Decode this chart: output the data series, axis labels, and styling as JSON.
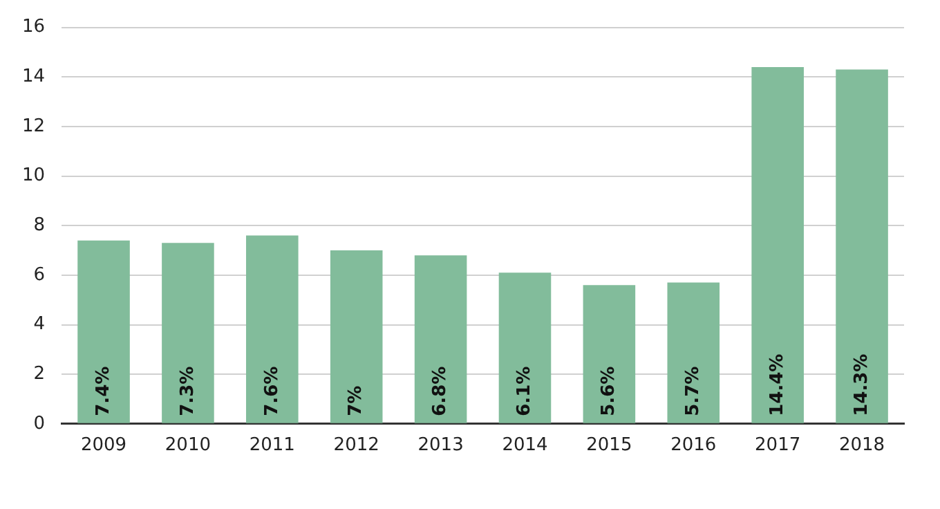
{
  "chart_data": {
    "type": "bar",
    "categories": [
      "2009",
      "2010",
      "2011",
      "2012",
      "2013",
      "2014",
      "2015",
      "2016",
      "2017",
      "2018"
    ],
    "values": [
      7.4,
      7.3,
      7.6,
      7,
      6.8,
      6.1,
      5.6,
      5.7,
      14.4,
      14.3
    ],
    "value_labels": [
      "7.4%",
      "7.3%",
      "7.6%",
      "7%",
      "6.8%",
      "6.1%",
      "5.6%",
      "5.7%",
      "14.4%",
      "14.3%"
    ],
    "color": "#82bc9b",
    "ylim": [
      0,
      16
    ],
    "yticks": [
      0,
      2,
      4,
      6,
      8,
      10,
      12,
      14,
      16
    ],
    "grid": "y",
    "legend": false
  }
}
